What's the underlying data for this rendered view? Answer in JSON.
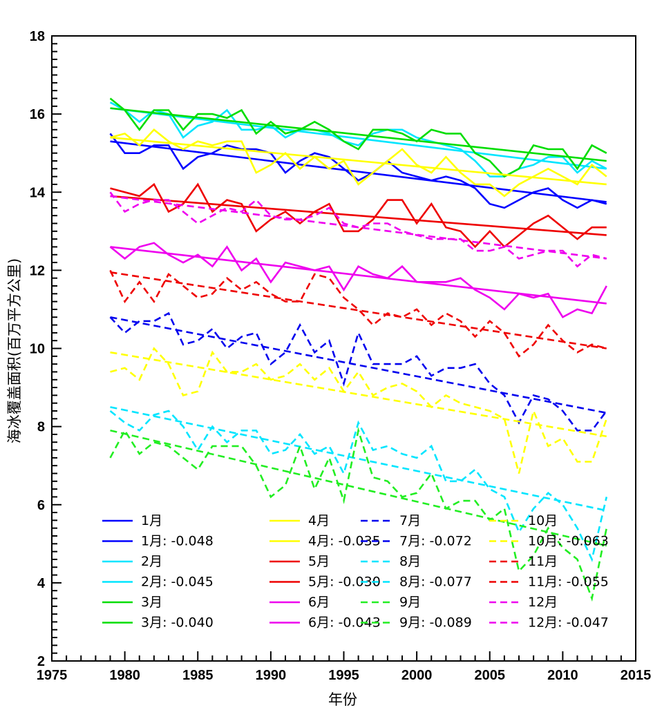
{
  "chart_data": {
    "type": "line",
    "xlabel": "年份",
    "ylabel": "海冰覆盖面积(百万平方公里)",
    "xlim": [
      1975,
      2015
    ],
    "ylim": [
      2,
      18
    ],
    "xticks": [
      1975,
      1980,
      1985,
      1990,
      1995,
      2000,
      2005,
      2010,
      2015
    ],
    "yticks": [
      2,
      4,
      6,
      8,
      10,
      12,
      14,
      16,
      18
    ],
    "x": [
      1979,
      1980,
      1981,
      1982,
      1983,
      1984,
      1985,
      1986,
      1987,
      1988,
      1989,
      1990,
      1991,
      1992,
      1993,
      1994,
      1995,
      1996,
      1997,
      1998,
      1999,
      2000,
      2001,
      2002,
      2003,
      2004,
      2005,
      2006,
      2007,
      2008,
      2009,
      2010,
      2011,
      2012,
      2013
    ],
    "legend_position": "bottom-left",
    "legend_columns": 4,
    "grid": false,
    "series": [
      {
        "name": "1月",
        "trend_label": "1月: -0.048",
        "color": "#0000ff",
        "dashed": false,
        "values": [
          15.5,
          15.0,
          15.0,
          15.2,
          15.2,
          14.6,
          14.9,
          15.0,
          15.2,
          15.1,
          15.1,
          15.0,
          14.5,
          14.8,
          15.0,
          14.9,
          14.6,
          14.3,
          14.5,
          14.8,
          14.5,
          14.4,
          14.3,
          14.4,
          14.3,
          14.1,
          13.7,
          13.6,
          13.8,
          14.0,
          14.1,
          13.8,
          13.6,
          13.8,
          13.7
        ],
        "trend": [
          15.3,
          13.75
        ]
      },
      {
        "name": "2月",
        "trend_label": "2月: -0.045",
        "color": "#00e5ff",
        "dashed": false,
        "values": [
          16.3,
          16.1,
          15.8,
          16.1,
          16.0,
          15.4,
          15.7,
          15.8,
          16.1,
          15.6,
          15.6,
          15.7,
          15.4,
          15.6,
          15.6,
          15.5,
          15.3,
          15.2,
          15.5,
          15.6,
          15.6,
          15.4,
          15.3,
          15.2,
          15.1,
          14.8,
          14.4,
          14.4,
          14.6,
          14.7,
          14.9,
          14.9,
          14.5,
          14.8,
          14.6
        ],
        "trend": [
          16.15,
          14.6
        ]
      },
      {
        "name": "3月",
        "trend_label": "3月: -0.040",
        "color": "#00dd00",
        "dashed": false,
        "values": [
          16.4,
          16.1,
          15.6,
          16.1,
          16.1,
          15.6,
          16.0,
          16.0,
          15.9,
          16.1,
          15.5,
          15.8,
          15.5,
          15.6,
          15.8,
          15.6,
          15.3,
          15.1,
          15.6,
          15.6,
          15.5,
          15.3,
          15.6,
          15.5,
          15.5,
          15.0,
          14.8,
          14.4,
          14.6,
          15.2,
          15.1,
          15.1,
          14.6,
          15.2,
          15.0
        ],
        "trend": [
          16.15,
          14.8
        ]
      },
      {
        "name": "4月",
        "trend_label": "4月: -0.035",
        "color": "#ffff00",
        "dashed": false,
        "values": [
          15.4,
          15.5,
          15.2,
          15.6,
          15.3,
          15.1,
          15.3,
          15.2,
          15.3,
          15.3,
          14.5,
          14.7,
          15.0,
          14.6,
          14.9,
          14.6,
          14.8,
          14.2,
          14.5,
          14.8,
          15.1,
          14.7,
          14.5,
          14.9,
          14.5,
          14.2,
          14.2,
          13.9,
          14.2,
          14.4,
          14.6,
          14.4,
          14.2,
          14.7,
          14.4
        ],
        "trend": [
          15.4,
          14.2
        ]
      },
      {
        "name": "5月",
        "trend_label": "5月: -0.030",
        "color": "#ee0000",
        "dashed": false,
        "values": [
          14.1,
          14.0,
          13.9,
          14.2,
          13.5,
          13.7,
          14.2,
          13.5,
          13.8,
          13.7,
          13.0,
          13.3,
          13.5,
          13.2,
          13.5,
          13.7,
          13.0,
          13.0,
          13.3,
          13.8,
          13.8,
          13.2,
          13.7,
          13.1,
          13.0,
          12.6,
          13.0,
          12.6,
          12.9,
          13.2,
          13.4,
          13.1,
          12.8,
          13.1,
          13.1
        ],
        "trend": [
          13.9,
          12.9
        ]
      },
      {
        "name": "6月",
        "trend_label": "6月: -0.043",
        "color": "#ee00ee",
        "dashed": false,
        "values": [
          12.6,
          12.3,
          12.6,
          12.7,
          12.4,
          12.2,
          12.4,
          12.1,
          12.6,
          12.0,
          12.3,
          11.7,
          12.2,
          12.1,
          12.0,
          12.1,
          11.5,
          12.1,
          11.9,
          11.8,
          12.1,
          11.7,
          11.7,
          11.7,
          11.8,
          11.5,
          11.3,
          11.0,
          11.4,
          11.3,
          11.4,
          10.8,
          11.0,
          10.9,
          11.6
        ],
        "trend": [
          12.6,
          11.15
        ]
      },
      {
        "name": "7月",
        "trend_label": "7月: -0.072",
        "color": "#0000ee",
        "dashed": true,
        "values": [
          10.8,
          10.4,
          10.7,
          10.7,
          10.9,
          10.1,
          10.2,
          10.5,
          10.0,
          10.3,
          10.4,
          9.6,
          9.9,
          10.6,
          9.9,
          10.2,
          9.1,
          10.4,
          9.6,
          9.6,
          9.6,
          9.8,
          9.3,
          9.5,
          9.5,
          9.6,
          9.1,
          8.8,
          8.1,
          8.8,
          8.7,
          8.4,
          7.9,
          7.9,
          8.4
        ],
        "trend": [
          10.8,
          8.35
        ]
      },
      {
        "name": "8月",
        "trend_label": "8月: -0.077",
        "color": "#00e5ff",
        "dashed": true,
        "values": [
          8.4,
          8.1,
          7.9,
          8.3,
          8.4,
          8.0,
          7.4,
          8.0,
          7.6,
          7.9,
          7.9,
          7.3,
          7.4,
          7.8,
          7.3,
          7.5,
          6.8,
          8.1,
          7.4,
          7.5,
          7.3,
          7.2,
          7.5,
          6.6,
          6.6,
          6.9,
          6.4,
          6.2,
          5.3,
          5.9,
          6.3,
          6.0,
          5.4,
          4.6,
          6.2
        ],
        "trend": [
          8.5,
          5.85
        ]
      },
      {
        "name": "9月",
        "trend_label": "9月: -0.089",
        "color": "#22ee22",
        "dashed": true,
        "values": [
          7.2,
          7.9,
          7.3,
          7.6,
          7.5,
          7.2,
          6.9,
          7.5,
          7.5,
          7.5,
          7.0,
          6.2,
          6.5,
          7.5,
          6.4,
          7.2,
          6.1,
          7.9,
          6.7,
          6.6,
          6.2,
          6.3,
          6.8,
          5.9,
          6.1,
          6.1,
          5.6,
          5.9,
          4.3,
          4.7,
          5.4,
          4.9,
          4.6,
          3.6,
          5.4
        ],
        "trend": [
          7.9,
          4.95
        ]
      },
      {
        "name": "10月",
        "trend_label": "10月: -0.063",
        "color": "#ffff00",
        "dashed": true,
        "values": [
          9.4,
          9.5,
          9.2,
          10.0,
          9.6,
          8.8,
          8.9,
          9.9,
          9.4,
          9.4,
          9.6,
          9.2,
          9.3,
          9.6,
          9.2,
          9.5,
          8.9,
          9.4,
          8.8,
          9.0,
          9.1,
          8.9,
          8.5,
          8.8,
          8.6,
          8.5,
          8.4,
          8.2,
          6.8,
          8.4,
          7.5,
          7.7,
          7.1,
          7.1,
          8.2
        ],
        "trend": [
          9.9,
          7.75
        ]
      },
      {
        "name": "11月",
        "trend_label": "11月: -0.055",
        "color": "#ee0000",
        "dashed": true,
        "values": [
          12.0,
          11.2,
          11.7,
          11.2,
          11.9,
          11.6,
          11.3,
          11.4,
          11.8,
          11.5,
          11.7,
          11.4,
          11.2,
          11.2,
          11.9,
          11.8,
          11.3,
          11.0,
          10.6,
          10.9,
          10.8,
          11.0,
          10.6,
          10.9,
          10.7,
          10.3,
          10.7,
          10.4,
          9.8,
          10.1,
          10.6,
          10.2,
          9.9,
          10.1,
          10.0
        ],
        "trend": [
          11.95,
          10.0
        ]
      },
      {
        "name": "12月",
        "trend_label": "12月: -0.047",
        "color": "#ee00ee",
        "dashed": true,
        "values": [
          14.0,
          13.5,
          13.7,
          13.8,
          13.8,
          13.5,
          13.2,
          13.4,
          13.6,
          13.5,
          13.8,
          13.4,
          13.3,
          13.3,
          13.4,
          13.6,
          13.2,
          13.1,
          13.2,
          13.2,
          13.0,
          12.9,
          12.8,
          12.8,
          12.8,
          12.5,
          12.5,
          12.6,
          12.3,
          12.4,
          12.5,
          12.5,
          12.1,
          12.4,
          12.3
        ],
        "trend": [
          13.9,
          12.3
        ]
      }
    ]
  }
}
